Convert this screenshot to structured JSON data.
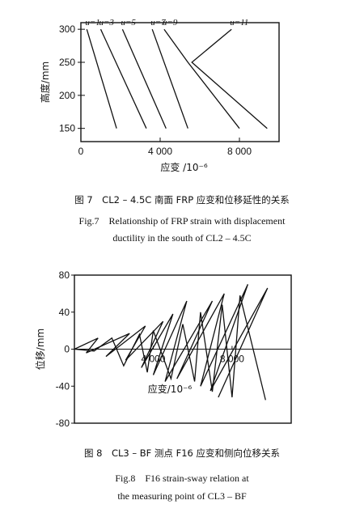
{
  "figure7": {
    "chart_data": {
      "type": "line",
      "xlabel": "应变 /10⁻⁶",
      "ylabel": "高度/mm",
      "xlim": [
        0,
        10000
      ],
      "ylim": [
        130,
        310
      ],
      "x_ticks": [
        "0",
        "4 000",
        "8 000"
      ],
      "y_ticks": [
        "150",
        "200",
        "250",
        "300"
      ],
      "y_tick_values": [
        150,
        200,
        250,
        300
      ],
      "x_tick_values": [
        0,
        4000,
        8000
      ],
      "series": [
        {
          "name": "u=1",
          "points": [
            [
              300,
              300
            ],
            [
              1800,
              150
            ]
          ]
        },
        {
          "name": "u=3",
          "points": [
            [
              1000,
              300
            ],
            [
              3300,
              150
            ]
          ]
        },
        {
          "name": "u=5",
          "points": [
            [
              2100,
              300
            ],
            [
              4300,
              150
            ]
          ]
        },
        {
          "name": "u=7",
          "points": [
            [
              3600,
              300
            ],
            [
              5400,
              150
            ]
          ]
        },
        {
          "name": "u=9",
          "points": [
            [
              4200,
              300
            ],
            [
              5400,
              250
            ],
            [
              8000,
              150
            ]
          ]
        },
        {
          "name": "u=11",
          "points": [
            [
              7600,
              300
            ],
            [
              5600,
              250
            ],
            [
              9400,
              150
            ]
          ]
        }
      ]
    },
    "caption_cn": "图 7　CL2 – 4.5C 南面 FRP 应变和位移延性的关系",
    "caption_en_1": "Fig.7　Relationship of FRP strain with displacement",
    "caption_en_2": "ductility in the south of CL2 – 4.5C"
  },
  "figure8": {
    "chart_data": {
      "type": "line",
      "xlabel": "应变/10⁻⁶",
      "ylabel": "位移/mm",
      "xlim": [
        0,
        11000
      ],
      "ylim": [
        -80,
        80
      ],
      "x_ticks": [
        "4 000",
        "8 000"
      ],
      "x_tick_values": [
        4000,
        8000
      ],
      "y_ticks": [
        "80",
        "40",
        "0",
        "-40",
        "-80"
      ],
      "y_tick_values": [
        80,
        40,
        0,
        -40,
        -80
      ],
      "series": [
        {
          "name": "",
          "points": [
            [
              0,
              0
            ],
            [
              1200,
              12
            ],
            [
              600,
              -4
            ],
            [
              2800,
              17
            ],
            [
              1600,
              -8
            ],
            [
              3600,
              25
            ],
            [
              2600,
              -12
            ],
            [
              4500,
              30
            ],
            [
              3400,
              -20
            ],
            [
              5000,
              38
            ],
            [
              4000,
              -28
            ],
            [
              5700,
              52
            ],
            [
              4600,
              -35
            ],
            [
              7000,
              52
            ],
            [
              5200,
              -32
            ],
            [
              7600,
              60
            ],
            [
              6400,
              -40
            ],
            [
              8800,
              70
            ],
            [
              6900,
              -45
            ],
            [
              9800,
              66
            ],
            [
              7300,
              -52
            ]
          ]
        },
        {
          "name": "",
          "points": [
            [
              0,
              0
            ],
            [
              1000,
              -2
            ],
            [
              1900,
              12
            ],
            [
              2500,
              -18
            ],
            [
              3300,
              16
            ],
            [
              3700,
              -25
            ],
            [
              4000,
              20
            ],
            [
              4900,
              -32
            ],
            [
              5500,
              27
            ],
            [
              6100,
              -35
            ],
            [
              6400,
              40
            ],
            [
              7000,
              -46
            ],
            [
              7500,
              48
            ],
            [
              8000,
              -52
            ],
            [
              8400,
              58
            ],
            [
              9700,
              -55
            ]
          ]
        }
      ]
    },
    "caption_cn": "图 8　CL3 – BF 测点 F16 应变和侧向位移关系",
    "caption_en_1": "Fig.8　F16 strain-sway relation at",
    "caption_en_2": "the measuring point of CL3 – BF"
  }
}
